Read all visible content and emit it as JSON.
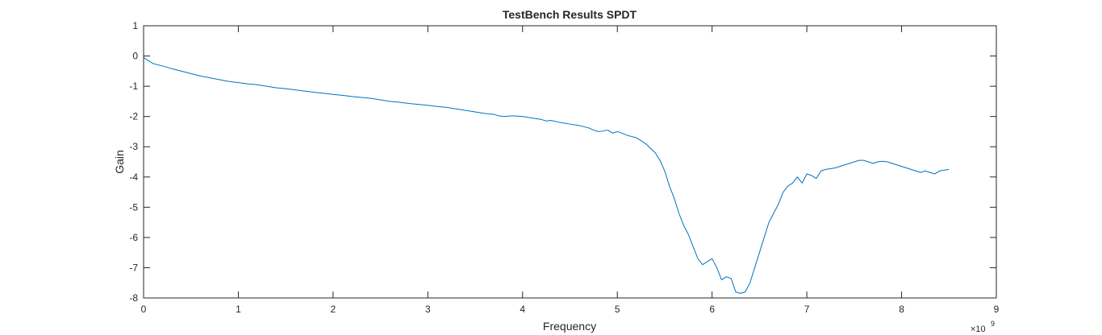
{
  "chart_data": {
    "type": "line",
    "title": "TestBench Results SPDT",
    "xlabel": "Frequency",
    "ylabel": "Gain",
    "x_exponent_label": "×10",
    "x_exponent_power": "9",
    "xlim": [
      0,
      9
    ],
    "ylim": [
      -8,
      1
    ],
    "x_scale": 1000000000,
    "xticks": [
      0,
      1,
      2,
      3,
      4,
      5,
      6,
      7,
      8,
      9
    ],
    "yticks": [
      -8,
      -7,
      -6,
      -5,
      -4,
      -3,
      -2,
      -1,
      0,
      1
    ],
    "xtick_labels": [
      "0",
      "1",
      "2",
      "3",
      "4",
      "5",
      "6",
      "7",
      "8",
      "9"
    ],
    "ytick_labels": [
      "-8",
      "-7",
      "-6",
      "-5",
      "-4",
      "-3",
      "-2",
      "-1",
      "0",
      "1"
    ],
    "grid": false,
    "box": true,
    "line_color": "#0072BD",
    "series": [
      {
        "x": [
          0.0,
          0.05,
          0.1,
          0.2,
          0.3,
          0.4,
          0.5,
          0.6,
          0.7,
          0.8,
          0.9,
          1.0,
          1.05,
          1.1,
          1.2,
          1.3,
          1.4,
          1.5,
          1.6,
          1.7,
          1.8,
          1.9,
          2.0,
          2.1,
          2.2,
          2.3,
          2.4,
          2.5,
          2.6,
          2.7,
          2.8,
          2.9,
          3.0,
          3.1,
          3.2,
          3.3,
          3.4,
          3.5,
          3.6,
          3.7,
          3.75,
          3.8,
          3.9,
          4.0,
          4.1,
          4.2,
          4.25,
          4.3,
          4.4,
          4.5,
          4.6,
          4.7,
          4.75,
          4.8,
          4.85,
          4.9,
          4.95,
          5.0,
          5.05,
          5.1,
          5.2,
          5.3,
          5.4,
          5.45,
          5.5,
          5.55,
          5.6,
          5.65,
          5.7,
          5.75,
          5.8,
          5.85,
          5.9,
          5.95,
          6.0,
          6.05,
          6.1,
          6.15,
          6.2,
          6.25,
          6.3,
          6.35,
          6.4,
          6.45,
          6.5,
          6.55,
          6.6,
          6.65,
          6.7,
          6.75,
          6.8,
          6.85,
          6.9,
          6.95,
          7.0,
          7.05,
          7.1,
          7.15,
          7.2,
          7.3,
          7.4,
          7.45,
          7.5,
          7.55,
          7.6,
          7.65,
          7.7,
          7.75,
          7.8,
          7.85,
          7.9,
          7.95,
          8.0,
          8.05,
          8.1,
          8.15,
          8.2,
          8.25,
          8.3,
          8.35,
          8.4,
          8.5
        ],
        "y": [
          -0.05,
          -0.15,
          -0.25,
          -0.33,
          -0.42,
          -0.5,
          -0.58,
          -0.66,
          -0.72,
          -0.78,
          -0.84,
          -0.88,
          -0.9,
          -0.92,
          -0.95,
          -1.0,
          -1.05,
          -1.08,
          -1.12,
          -1.16,
          -1.2,
          -1.23,
          -1.27,
          -1.3,
          -1.34,
          -1.37,
          -1.4,
          -1.45,
          -1.5,
          -1.53,
          -1.57,
          -1.6,
          -1.63,
          -1.67,
          -1.7,
          -1.75,
          -1.8,
          -1.85,
          -1.9,
          -1.93,
          -1.98,
          -2.0,
          -1.98,
          -2.0,
          -2.05,
          -2.1,
          -2.15,
          -2.13,
          -2.2,
          -2.25,
          -2.3,
          -2.38,
          -2.45,
          -2.5,
          -2.48,
          -2.45,
          -2.55,
          -2.5,
          -2.55,
          -2.62,
          -2.7,
          -2.9,
          -3.2,
          -3.45,
          -3.8,
          -4.3,
          -4.7,
          -5.2,
          -5.6,
          -5.9,
          -6.3,
          -6.7,
          -6.9,
          -6.8,
          -6.7,
          -7.0,
          -7.4,
          -7.3,
          -7.35,
          -7.8,
          -7.85,
          -7.8,
          -7.5,
          -7.0,
          -6.5,
          -6.0,
          -5.5,
          -5.2,
          -4.9,
          -4.5,
          -4.3,
          -4.2,
          -4.0,
          -4.2,
          -3.9,
          -3.95,
          -4.05,
          -3.8,
          -3.75,
          -3.7,
          -3.6,
          -3.55,
          -3.5,
          -3.45,
          -3.45,
          -3.5,
          -3.55,
          -3.5,
          -3.48,
          -3.5,
          -3.55,
          -3.6,
          -3.65,
          -3.7,
          -3.75,
          -3.8,
          -3.85,
          -3.8,
          -3.85,
          -3.9,
          -3.8,
          -3.75
        ]
      }
    ]
  }
}
